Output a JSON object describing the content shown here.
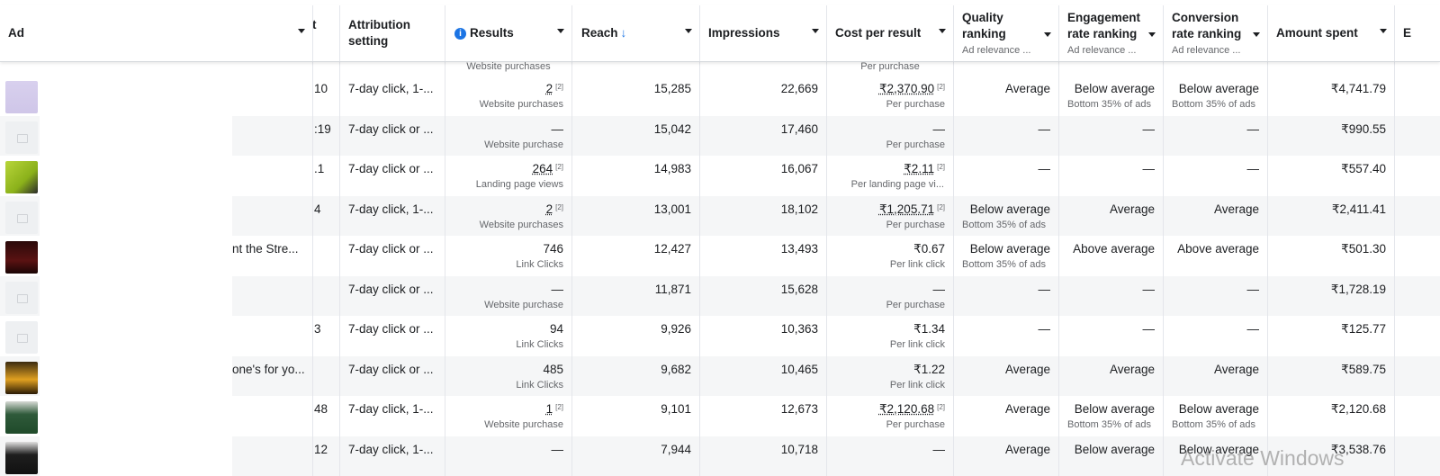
{
  "columns": {
    "ad": "Ad",
    "partial": "t",
    "attribution": [
      "Attribution",
      "setting"
    ],
    "results": "Results",
    "reach": "Reach",
    "reach_sort": "↓",
    "impressions": "Impressions",
    "cost": "Cost per result",
    "quality": [
      "Quality",
      "ranking"
    ],
    "quality_sub": "Ad relevance ...",
    "engagement": [
      "Engagement",
      "rate ranking"
    ],
    "engagement_sub": "Ad relevance ...",
    "conversion": [
      "Conversion",
      "rate ranking"
    ],
    "conversion_sub": "Ad relevance ...",
    "amount": "Amount spent",
    "edge": "E"
  },
  "top_partial_row": {
    "results_sub": "Website purchases",
    "cost_sub": "Per purchase"
  },
  "rows": [
    {
      "thumb": "shirt-image",
      "name": "",
      "mid": "10",
      "attr": "7-day click, 1-...",
      "results": "2",
      "results_note": "[2]",
      "results_sub": "Website purchases",
      "reach": "15,285",
      "impr": "22,669",
      "cost": "₹2,370.90",
      "cost_note": "[2]",
      "cost_sub": "Per purchase",
      "quality": "Average",
      "quality_sub": "",
      "eng": "Below average",
      "eng_sub": "Bottom 35% of ads",
      "conv": "Below average",
      "conv_sub": "Bottom 35% of ads",
      "amount": "₹4,741.79"
    },
    {
      "thumb": "placeholder",
      "name": "",
      "mid": ":19",
      "attr": "7-day click or ...",
      "results": "—",
      "results_note": "",
      "results_sub": "Website purchase",
      "reach": "15,042",
      "impr": "17,460",
      "cost": "—",
      "cost_note": "",
      "cost_sub": "Per purchase",
      "quality": "—",
      "quality_sub": "",
      "eng": "—",
      "eng_sub": "",
      "conv": "—",
      "conv_sub": "",
      "amount": "₹990.55"
    },
    {
      "thumb": "green-shirt-image",
      "name": "",
      "mid": ".1",
      "attr": "7-day click or ...",
      "results": "264",
      "results_note": "[2]",
      "results_sub": "Landing page views",
      "reach": "14,983",
      "impr": "16,067",
      "cost": "₹2.11",
      "cost_note": "[2]",
      "cost_sub": "Per landing page vi...",
      "quality": "—",
      "quality_sub": "",
      "eng": "—",
      "eng_sub": "",
      "conv": "—",
      "conv_sub": "",
      "amount": "₹557.40"
    },
    {
      "thumb": "placeholder",
      "name": "",
      "mid": "4",
      "attr": "7-day click, 1-...",
      "results": "2",
      "results_note": "[2]",
      "results_sub": "Website purchases",
      "reach": "13,001",
      "impr": "18,102",
      "cost": "₹1,205.71",
      "cost_note": "[2]",
      "cost_sub": "Per purchase",
      "quality": "Below average",
      "quality_sub": "Bottom 35% of ads",
      "eng": "Average",
      "eng_sub": "",
      "conv": "Average",
      "conv_sub": "",
      "amount": "₹2,411.41"
    },
    {
      "thumb": "virus-poster-image",
      "name": "nt the Stre...",
      "mid": "",
      "attr": "7-day click or ...",
      "results": "746",
      "results_note": "",
      "results_sub": "Link Clicks",
      "reach": "12,427",
      "impr": "13,493",
      "cost": "₹0.67",
      "cost_note": "",
      "cost_sub": "Per link click",
      "quality": "Below average",
      "quality_sub": "Bottom 35% of ads",
      "eng": "Above average",
      "eng_sub": "",
      "conv": "Above average",
      "conv_sub": "",
      "amount": "₹501.30"
    },
    {
      "thumb": "placeholder",
      "name": "",
      "mid": "",
      "attr": "7-day click or ...",
      "results": "—",
      "results_note": "",
      "results_sub": "Website purchase",
      "reach": "11,871",
      "impr": "15,628",
      "cost": "—",
      "cost_note": "",
      "cost_sub": "Per purchase",
      "quality": "—",
      "quality_sub": "",
      "eng": "—",
      "eng_sub": "",
      "conv": "—",
      "conv_sub": "",
      "amount": "₹1,728.19"
    },
    {
      "thumb": "placeholder",
      "name": "",
      "mid": "3",
      "attr": "7-day click or ...",
      "results": "94",
      "results_note": "",
      "results_sub": "Link Clicks",
      "reach": "9,926",
      "impr": "10,363",
      "cost": "₹1.34",
      "cost_note": "",
      "cost_sub": "Per link click",
      "quality": "—",
      "quality_sub": "",
      "eng": "—",
      "eng_sub": "",
      "conv": "—",
      "conv_sub": "",
      "amount": "₹125.77"
    },
    {
      "thumb": "yellow-poster-image",
      "name": "one's for yo...",
      "mid": "",
      "attr": "7-day click or ...",
      "results": "485",
      "results_note": "",
      "results_sub": "Link Clicks",
      "reach": "9,682",
      "impr": "10,465",
      "cost": "₹1.22",
      "cost_note": "",
      "cost_sub": "Per link click",
      "quality": "Average",
      "quality_sub": "",
      "eng": "Average",
      "eng_sub": "",
      "conv": "Average",
      "conv_sub": "",
      "amount": "₹589.75"
    },
    {
      "thumb": "green-hoodie-image",
      "name": "",
      "mid": "48",
      "attr": "7-day click, 1-...",
      "results": "1",
      "results_note": "[2]",
      "results_sub": "Website purchase",
      "reach": "9,101",
      "impr": "12,673",
      "cost": "₹2,120.68",
      "cost_note": "[2]",
      "cost_sub": "Per purchase",
      "quality": "Average",
      "quality_sub": "",
      "eng": "Below average",
      "eng_sub": "Bottom 35% of ads",
      "conv": "Below average",
      "conv_sub": "Bottom 35% of ads",
      "amount": "₹2,120.68"
    },
    {
      "thumb": "black-tshirt-image",
      "name": "",
      "mid": "12",
      "attr": "7-day click, 1-...",
      "results": "—",
      "results_note": "",
      "results_sub": "",
      "reach": "7,944",
      "impr": "10,718",
      "cost": "—",
      "cost_note": "",
      "cost_sub": "",
      "quality": "Average",
      "quality_sub": "",
      "eng": "Below average",
      "eng_sub": "",
      "conv": "Below average",
      "conv_sub": "",
      "amount": "₹3,538.76"
    }
  ],
  "watermark": "Activate Windows",
  "colors": {
    "accent": "#1b74e4",
    "border": "#e4e6eb",
    "alt_row": "#f5f6f7",
    "muted": "#65676b"
  }
}
